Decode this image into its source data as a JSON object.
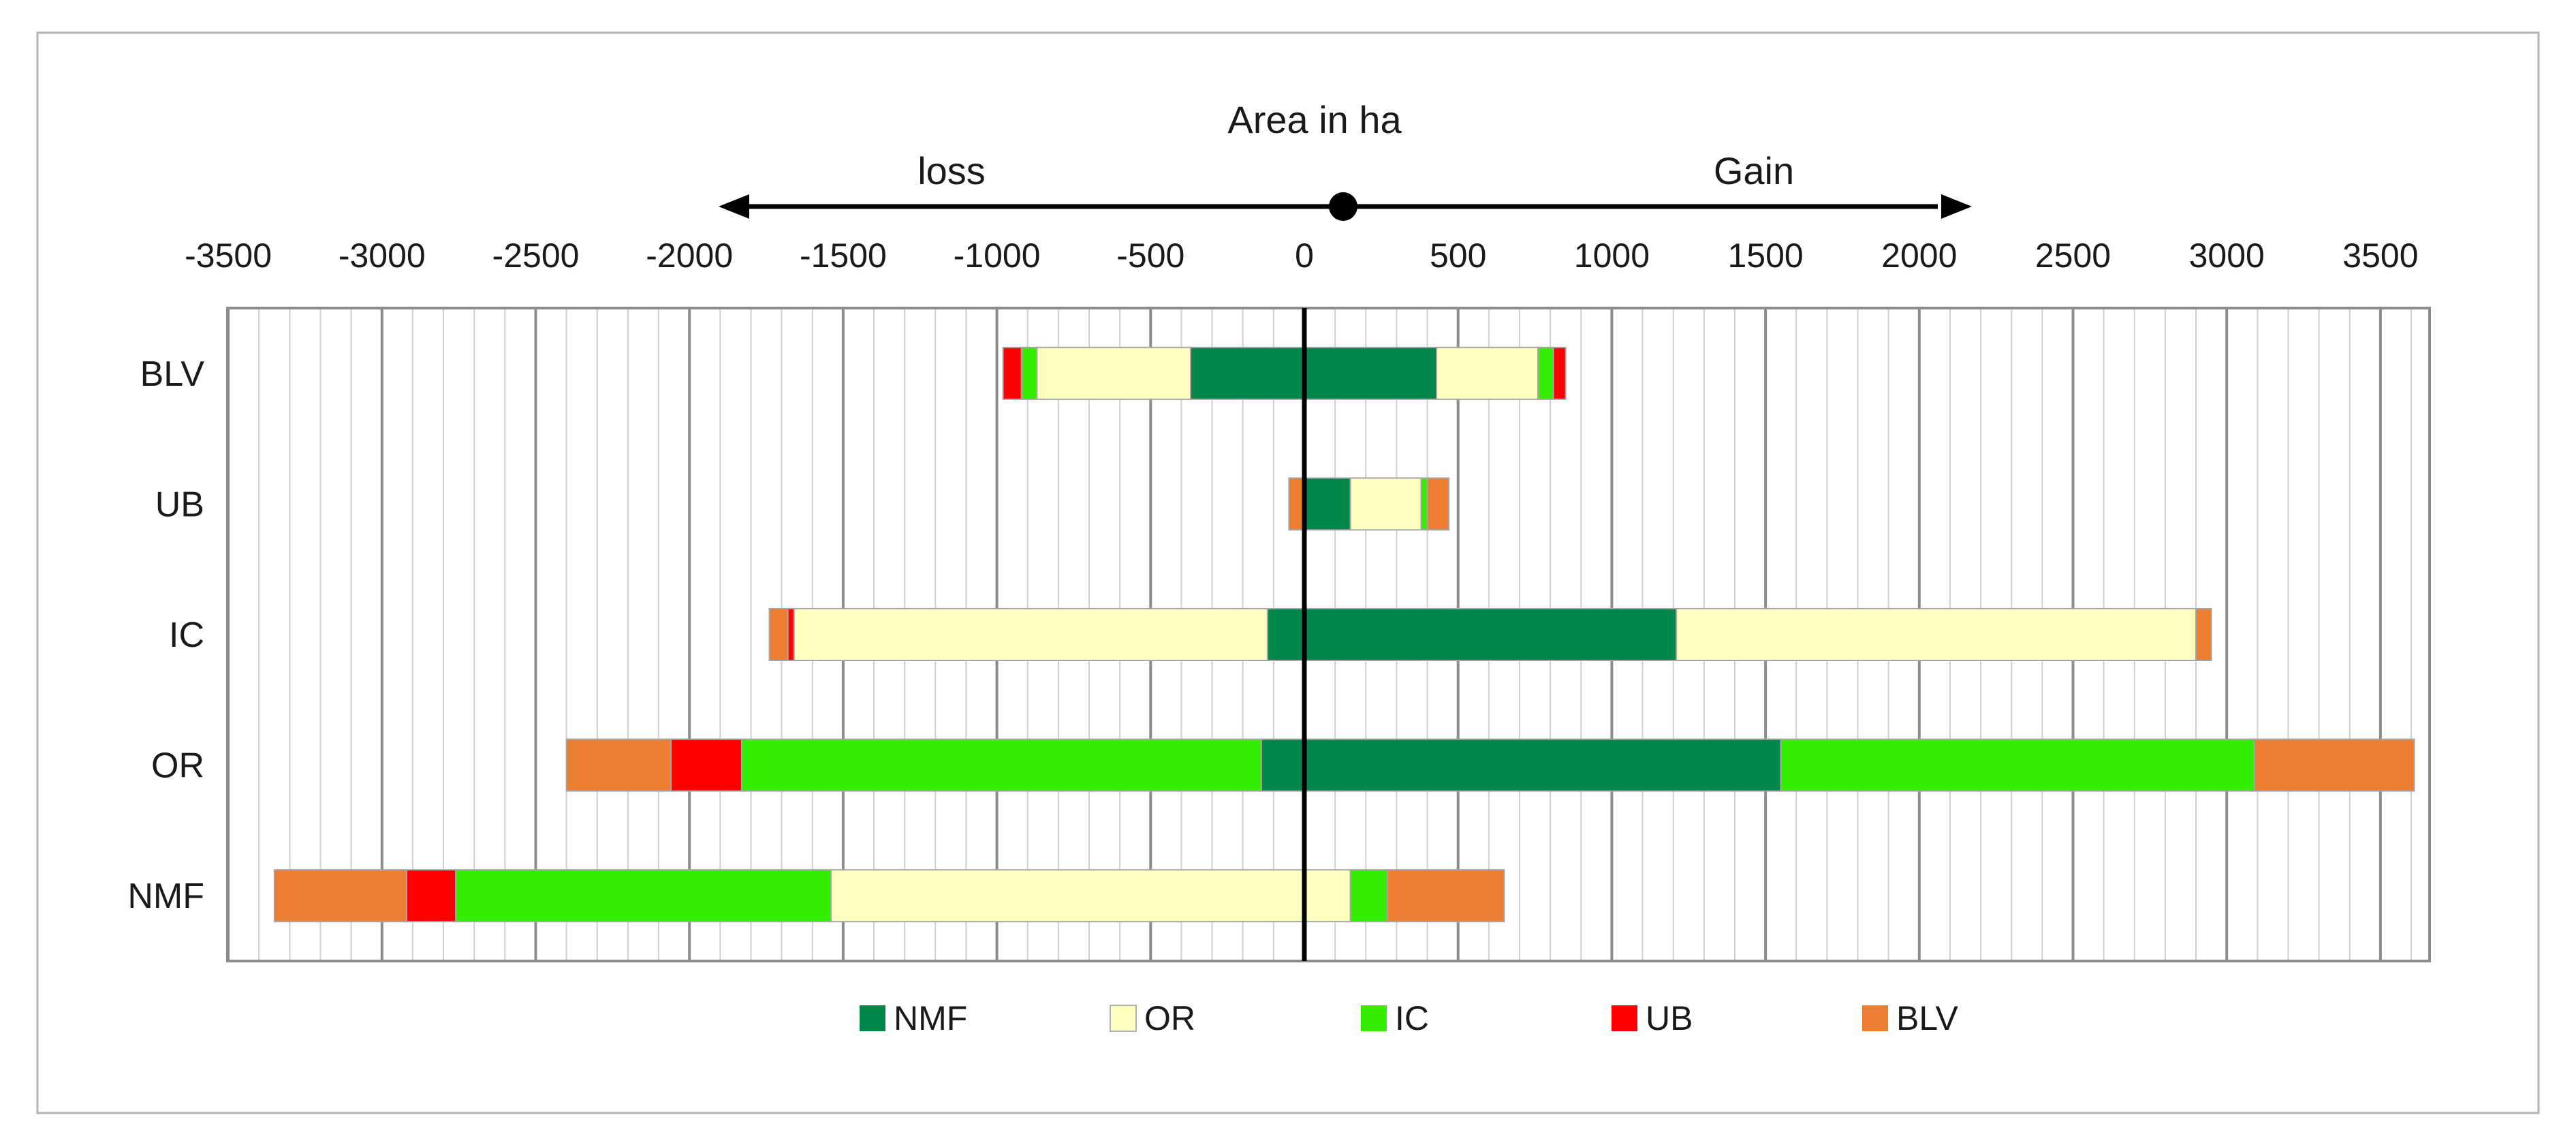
{
  "chart_data": {
    "type": "bar",
    "orientation": "horizontal",
    "stacked": true,
    "diverging": true,
    "title": "Area in ha",
    "direction_labels": {
      "negative": "loss",
      "positive": "Gain"
    },
    "xlim": [
      -3500,
      3600
    ],
    "x_ticks": [
      -3500,
      -3000,
      -2500,
      -2000,
      -1500,
      -1000,
      -500,
      0,
      500,
      1000,
      1500,
      2000,
      2500,
      3000,
      3500
    ],
    "x_tick_labels": [
      "-3500",
      "-3000",
      "-2500",
      "-2000",
      "-1500",
      "-1000",
      "-500",
      "0",
      "500",
      "1000",
      "1500",
      "2000",
      "2500",
      "3000",
      "3500"
    ],
    "minor_grid_step": 100,
    "categories": [
      "BLV",
      "UB",
      "IC",
      "OR",
      "NMF"
    ],
    "series": [
      {
        "name": "NMF",
        "color": "#00884a",
        "loss": [
          -370,
          0,
          -120,
          -140,
          0
        ],
        "gain": [
          430,
          150,
          1210,
          1550,
          0
        ]
      },
      {
        "name": "OR",
        "color": "#ffffc0",
        "loss": [
          -500,
          0,
          -1540,
          0,
          -1540
        ],
        "gain": [
          330,
          230,
          1690,
          0,
          150
        ]
      },
      {
        "name": "IC",
        "color": "#33ee00",
        "loss": [
          -50,
          0,
          0,
          -1690,
          -1220
        ],
        "gain": [
          50,
          20,
          0,
          1540,
          120
        ]
      },
      {
        "name": "UB",
        "color": "#ff0000",
        "loss": [
          -60,
          0,
          -20,
          -230,
          -160
        ],
        "gain": [
          40,
          0,
          0,
          0,
          0
        ]
      },
      {
        "name": "BLV",
        "color": "#ed7d31",
        "loss": [
          0,
          -50,
          -60,
          -340,
          -430
        ],
        "gain": [
          0,
          70,
          50,
          520,
          380
        ]
      }
    ]
  }
}
